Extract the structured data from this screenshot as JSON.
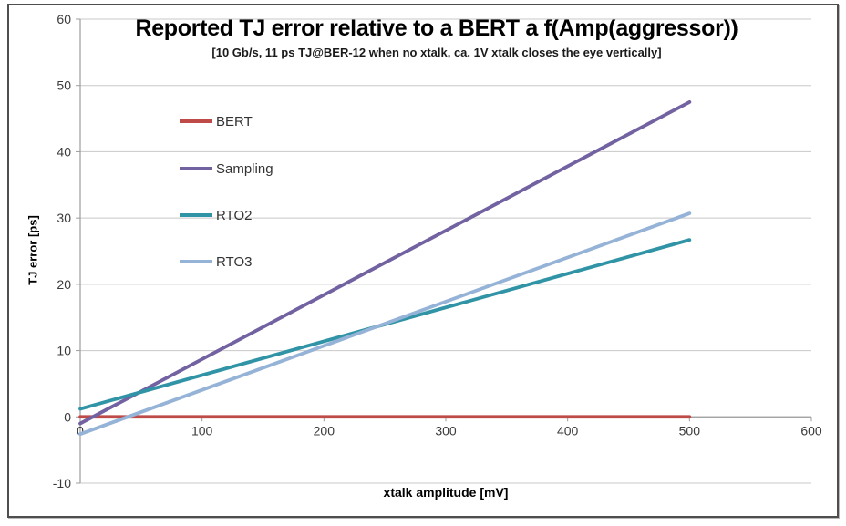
{
  "window": {
    "background": "#ffffff",
    "border_color": "#4e4e4e"
  },
  "chart_data": {
    "type": "line",
    "title": "Reported TJ error relative to a BERT a f(Amp(aggressor))",
    "subtitle": "[10 Gb/s, 11 ps TJ@BER-12 when no xtalk, ca. 1V xtalk closes the eye vertically]",
    "xlabel": "xtalk amplitude [mV]",
    "ylabel": "TJ error [ps]",
    "xlim": [
      0,
      600
    ],
    "ylim": [
      -10,
      60
    ],
    "xticks": [
      0,
      100,
      200,
      300,
      400,
      500,
      600
    ],
    "yticks": [
      -10,
      0,
      10,
      20,
      30,
      40,
      50,
      60
    ],
    "grid": "horizontal",
    "legend_position": "inside-upper-left",
    "series": [
      {
        "name": "BERT",
        "color": "#be4b48",
        "x": [
          0,
          500
        ],
        "y": [
          0,
          0
        ]
      },
      {
        "name": "Sampling",
        "color": "#7262a2",
        "x": [
          0,
          500
        ],
        "y": [
          -1,
          47.5
        ]
      },
      {
        "name": "RTO2",
        "color": "#3094a6",
        "x": [
          0,
          500
        ],
        "y": [
          1.2,
          26.7
        ]
      },
      {
        "name": "RTO3",
        "color": "#95b3d7",
        "x": [
          0,
          500
        ],
        "y": [
          -2.6,
          30.7
        ]
      }
    ],
    "colors": {
      "gridline": "#c8c8c8",
      "axis": "#9c9c9c",
      "tick_text": "#3b3b3b",
      "legend_text": "#333333"
    }
  }
}
